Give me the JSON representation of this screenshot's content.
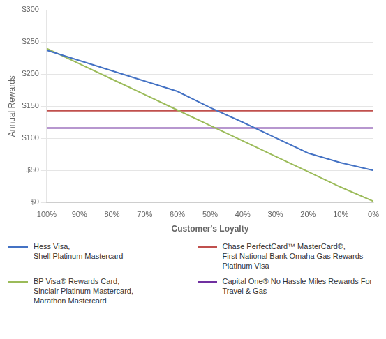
{
  "chart_data": {
    "type": "line",
    "x_label": "Customer's Loyalty",
    "y_label": "Annual Rewards",
    "x": [
      1.0,
      0.9,
      0.8,
      0.7,
      0.6,
      0.5,
      0.4,
      0.3,
      0.2,
      0.1,
      0.0
    ],
    "series": [
      {
        "name": "Hess Visa,\nShell Platinum Mastercard",
        "color": "#4472C4",
        "values": [
          237,
          221,
          205,
          189,
          173,
          148,
          125,
          101,
          77,
          62,
          50
        ]
      },
      {
        "name": "BP Visa® Rewards Card,\nSinclair Platinum Mastercard,\nMarathon Mastercard",
        "color": "#9BBB59",
        "values": [
          240,
          216,
          192,
          168,
          144,
          120,
          96,
          72,
          48,
          24,
          2
        ]
      },
      {
        "name": "Chase PerfectCard™ MasterCard®,\nFirst National Bank Omaha Gas Rewards Platinum Visa",
        "color": "#C0504D",
        "values": [
          143,
          143,
          143,
          143,
          143,
          143,
          143,
          143,
          143,
          143,
          143
        ]
      },
      {
        "name": "Capital One® No Hassle Miles Rewards For Travel & Gas",
        "color": "#7030A0",
        "values": [
          116,
          116,
          116,
          116,
          116,
          116,
          116,
          116,
          116,
          116,
          116
        ]
      }
    ],
    "xlim": [
      1.0,
      0.0
    ],
    "xticks": [
      {
        "value": 1.0,
        "label": "100%"
      },
      {
        "value": 0.9,
        "label": "90%"
      },
      {
        "value": 0.8,
        "label": "80%"
      },
      {
        "value": 0.7,
        "label": "70%"
      },
      {
        "value": 0.6,
        "label": "60%"
      },
      {
        "value": 0.5,
        "label": "50%"
      },
      {
        "value": 0.4,
        "label": "40%"
      },
      {
        "value": 0.3,
        "label": "30%"
      },
      {
        "value": 0.2,
        "label": "20%"
      },
      {
        "value": 0.1,
        "label": "10%"
      },
      {
        "value": 0.0,
        "label": "0%"
      }
    ],
    "ylim": [
      0,
      300
    ],
    "yticks": [
      {
        "value": 0,
        "label": "$0"
      },
      {
        "value": 50,
        "label": "$50"
      },
      {
        "value": 100,
        "label": "$100"
      },
      {
        "value": 150,
        "label": "$150"
      },
      {
        "value": 200,
        "label": "$200"
      },
      {
        "value": 250,
        "label": "$250"
      },
      {
        "value": 300,
        "label": "$300"
      }
    ],
    "grid": "y",
    "legend": "bottom"
  }
}
